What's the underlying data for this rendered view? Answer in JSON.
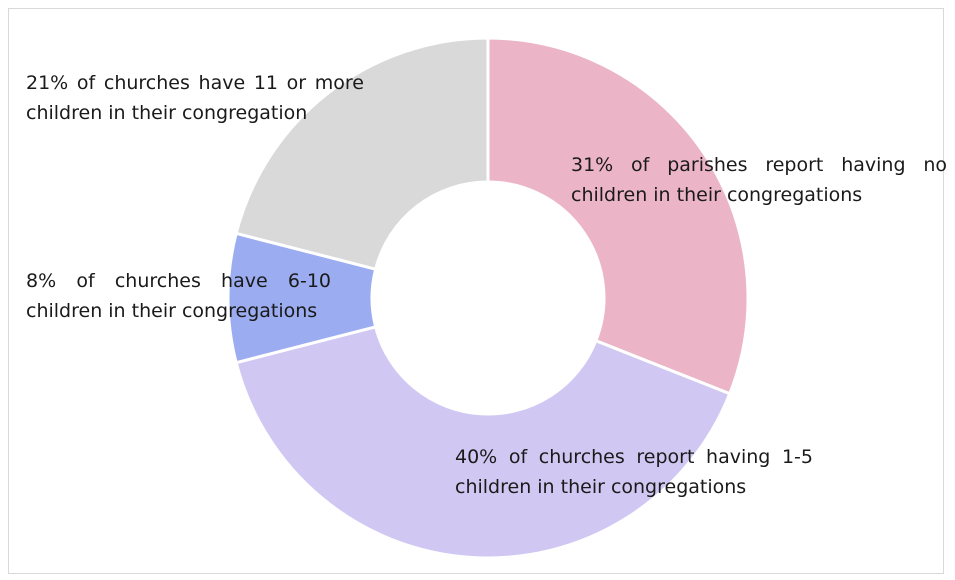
{
  "chart_data": {
    "type": "pie",
    "donut": true,
    "slices": [
      {
        "value": 31,
        "color": "#ebb4c7",
        "label": "31% of parishes report having no children in their congregations"
      },
      {
        "value": 40,
        "color": "#d0c8f2",
        "label": "40% of churches report having 1-5 children in their congregations"
      },
      {
        "value": 8,
        "color": "#9bacf0",
        "label": "8% of churches have 6-10 children in their congregations"
      },
      {
        "value": 21,
        "color": "#d9d9d9",
        "label": "21% of churches have 11 or more children in their congregation"
      }
    ],
    "legend": "none",
    "data_labels": "inside-outside"
  }
}
